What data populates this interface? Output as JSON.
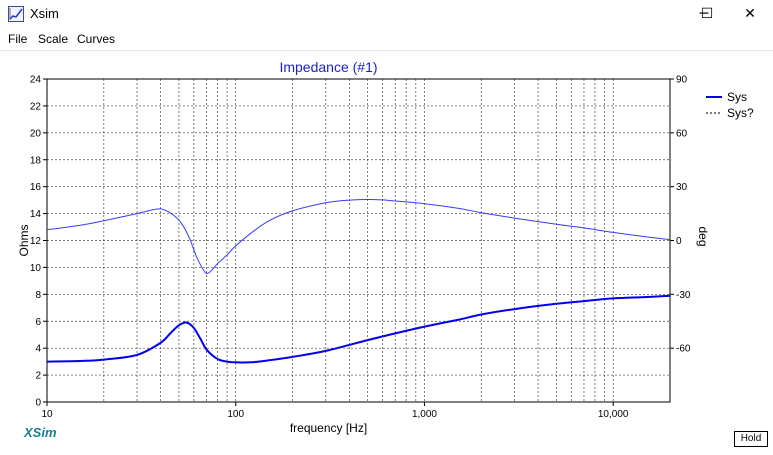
{
  "window": {
    "title": "Xsim",
    "minimize_glyph": "─",
    "maximize_glyph": "☐",
    "close_glyph": "✕"
  },
  "menu": {
    "items": [
      "File",
      "Scale",
      "Curves"
    ]
  },
  "brand_label": "XSim",
  "hold_label": "Hold",
  "colors": {
    "impedance": "#0000ee",
    "phase": "#3a3aff",
    "title": "#1e1ecc"
  },
  "chart_data": {
    "type": "line",
    "title": "Impedance (#1)",
    "xlabel": "frequency [Hz]",
    "ylabel": "Ohms",
    "y2label": "deg",
    "xscale": "log",
    "xlim": [
      10,
      20000
    ],
    "ylim": [
      0,
      24
    ],
    "y2lim": [
      -90,
      90
    ],
    "x_ticks": [
      10,
      100,
      1000,
      10000
    ],
    "x_tick_labels": [
      "10",
      "100",
      "1,000",
      "10,000"
    ],
    "y_ticks": [
      0,
      2,
      4,
      6,
      8,
      10,
      12,
      14,
      16,
      18,
      20,
      22,
      24
    ],
    "y2_ticks": [
      -60,
      -30,
      0,
      30,
      60,
      90
    ],
    "grid": true,
    "legend": {
      "position": "top-right",
      "entries": [
        {
          "label": "Sys",
          "style": "solid"
        },
        {
          "label": "Sys?",
          "style": "dashed"
        }
      ]
    },
    "series": [
      {
        "name": "Sys",
        "axis": "left",
        "x": [
          10,
          15,
          20,
          30,
          40,
          45,
          50,
          55,
          60,
          65,
          70,
          80,
          90,
          100,
          120,
          150,
          200,
          300,
          500,
          700,
          1000,
          1500,
          2000,
          3000,
          5000,
          7000,
          10000,
          15000,
          20000
        ],
        "y": [
          3.0,
          3.05,
          3.15,
          3.5,
          4.4,
          5.1,
          5.7,
          5.9,
          5.5,
          4.7,
          3.9,
          3.2,
          3.0,
          2.95,
          2.95,
          3.1,
          3.35,
          3.8,
          4.6,
          5.1,
          5.6,
          6.1,
          6.5,
          6.9,
          7.3,
          7.5,
          7.7,
          7.8,
          7.9
        ]
      },
      {
        "name": "Sys",
        "axis": "right",
        "x": [
          10,
          15,
          20,
          30,
          38,
          42,
          47,
          52,
          57,
          62,
          68,
          72,
          80,
          90,
          100,
          120,
          150,
          200,
          300,
          400,
          550,
          700,
          1000,
          1500,
          2000,
          3000,
          5000,
          7000,
          10000,
          15000,
          20000
        ],
        "y": [
          6,
          8.5,
          11,
          15,
          17.5,
          17,
          14,
          9,
          1,
          -9,
          -17,
          -18,
          -13,
          -8,
          -3,
          4,
          11,
          16.5,
          21,
          22.5,
          22.8,
          22,
          20.5,
          18,
          15.5,
          12.5,
          9,
          7,
          4.5,
          2,
          0.5
        ]
      }
    ]
  }
}
